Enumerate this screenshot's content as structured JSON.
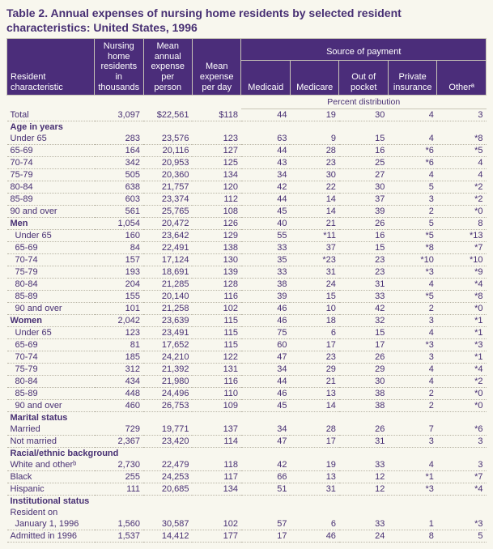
{
  "title": "Table 2. Annual expenses of nursing home residents by selected resident characteristics: United States, 1996",
  "header": {
    "resident_char": "Resident\ncharacteristic",
    "col1": "Nursing home residents in thousands",
    "col2": "Mean annual expense per person",
    "col3": "Mean expense per day",
    "source_group": "Source of payment",
    "sub": [
      "Medicaid",
      "Medicare",
      "Out of pocket",
      "Private insurance",
      "Otherª"
    ],
    "percent_dist": "Percent distribution"
  },
  "rows": [
    {
      "t": "data",
      "cls": "dot",
      "label": "Total",
      "ind": 0,
      "v": [
        "3,097",
        "$22,561",
        "$118",
        "44",
        "19",
        "30",
        "4",
        "3"
      ]
    },
    {
      "t": "section",
      "label": "Age in years"
    },
    {
      "t": "data",
      "cls": "dot",
      "label": "Under 65",
      "ind": 0,
      "v": [
        "283",
        "23,576",
        "123",
        "63",
        "9",
        "15",
        "4",
        "*8"
      ]
    },
    {
      "t": "data",
      "cls": "dot",
      "label": "65-69",
      "ind": 0,
      "v": [
        "164",
        "20,116",
        "127",
        "44",
        "28",
        "16",
        "*6",
        "*5"
      ]
    },
    {
      "t": "data",
      "cls": "dot",
      "label": "70-74",
      "ind": 0,
      "v": [
        "342",
        "20,953",
        "125",
        "43",
        "23",
        "25",
        "*6",
        "4"
      ]
    },
    {
      "t": "data",
      "cls": "dot",
      "label": "75-79",
      "ind": 0,
      "v": [
        "505",
        "20,360",
        "134",
        "34",
        "30",
        "27",
        "4",
        "4"
      ]
    },
    {
      "t": "data",
      "cls": "dot",
      "label": "80-84",
      "ind": 0,
      "v": [
        "638",
        "21,757",
        "120",
        "42",
        "22",
        "30",
        "5",
        "*2"
      ]
    },
    {
      "t": "data",
      "cls": "dot",
      "label": "85-89",
      "ind": 0,
      "v": [
        "603",
        "23,374",
        "112",
        "44",
        "14",
        "37",
        "3",
        "*2"
      ]
    },
    {
      "t": "data",
      "cls": "dot",
      "label": "90 and over",
      "ind": 0,
      "v": [
        "561",
        "25,765",
        "108",
        "45",
        "14",
        "39",
        "2",
        "*0"
      ]
    },
    {
      "t": "data",
      "cls": "dot",
      "label": "Men",
      "ind": 0,
      "bold": true,
      "v": [
        "1,054",
        "20,472",
        "126",
        "40",
        "21",
        "26",
        "5",
        "8"
      ]
    },
    {
      "t": "data",
      "cls": "dot",
      "label": "Under 65",
      "ind": 1,
      "v": [
        "160",
        "23,642",
        "129",
        "55",
        "*11",
        "16",
        "*5",
        "*13"
      ]
    },
    {
      "t": "data",
      "cls": "dot",
      "label": "65-69",
      "ind": 1,
      "v": [
        "84",
        "22,491",
        "138",
        "33",
        "37",
        "15",
        "*8",
        "*7"
      ]
    },
    {
      "t": "data",
      "cls": "dot",
      "label": "70-74",
      "ind": 1,
      "v": [
        "157",
        "17,124",
        "130",
        "35",
        "*23",
        "23",
        "*10",
        "*10"
      ]
    },
    {
      "t": "data",
      "cls": "dot",
      "label": "75-79",
      "ind": 1,
      "v": [
        "193",
        "18,691",
        "139",
        "33",
        "31",
        "23",
        "*3",
        "*9"
      ]
    },
    {
      "t": "data",
      "cls": "dot",
      "label": "80-84",
      "ind": 1,
      "v": [
        "204",
        "21,285",
        "128",
        "38",
        "24",
        "31",
        "4",
        "*4"
      ]
    },
    {
      "t": "data",
      "cls": "dot",
      "label": "85-89",
      "ind": 1,
      "v": [
        "155",
        "20,140",
        "116",
        "39",
        "15",
        "33",
        "*5",
        "*8"
      ]
    },
    {
      "t": "data",
      "cls": "dot",
      "label": "90 and over",
      "ind": 1,
      "v": [
        "101",
        "21,258",
        "102",
        "46",
        "10",
        "42",
        "2",
        "*0"
      ]
    },
    {
      "t": "data",
      "cls": "dot",
      "label": "Women",
      "ind": 0,
      "bold": true,
      "v": [
        "2,042",
        "23,639",
        "115",
        "46",
        "18",
        "32",
        "3",
        "*1"
      ]
    },
    {
      "t": "data",
      "cls": "dot",
      "label": "Under 65",
      "ind": 1,
      "v": [
        "123",
        "23,491",
        "115",
        "75",
        "6",
        "15",
        "4",
        "*1"
      ]
    },
    {
      "t": "data",
      "cls": "dot",
      "label": "65-69",
      "ind": 1,
      "v": [
        "81",
        "17,652",
        "115",
        "60",
        "17",
        "17",
        "*3",
        "*3"
      ]
    },
    {
      "t": "data",
      "cls": "dot",
      "label": "70-74",
      "ind": 1,
      "v": [
        "185",
        "24,210",
        "122",
        "47",
        "23",
        "26",
        "3",
        "*1"
      ]
    },
    {
      "t": "data",
      "cls": "dot",
      "label": "75-79",
      "ind": 1,
      "v": [
        "312",
        "21,392",
        "131",
        "34",
        "29",
        "29",
        "4",
        "*4"
      ]
    },
    {
      "t": "data",
      "cls": "dot",
      "label": "80-84",
      "ind": 1,
      "v": [
        "434",
        "21,980",
        "116",
        "44",
        "21",
        "30",
        "4",
        "*2"
      ]
    },
    {
      "t": "data",
      "cls": "dot",
      "label": "85-89",
      "ind": 1,
      "v": [
        "448",
        "24,496",
        "110",
        "46",
        "13",
        "38",
        "2",
        "*0"
      ]
    },
    {
      "t": "data",
      "cls": "dot",
      "label": "90 and over",
      "ind": 1,
      "v": [
        "460",
        "26,753",
        "109",
        "45",
        "14",
        "38",
        "2",
        "*0"
      ]
    },
    {
      "t": "section",
      "label": "Marital status"
    },
    {
      "t": "data",
      "cls": "dot",
      "label": "Married",
      "ind": 0,
      "v": [
        "729",
        "19,771",
        "137",
        "34",
        "28",
        "26",
        "7",
        "*6"
      ]
    },
    {
      "t": "data",
      "cls": "dot",
      "label": "Not married",
      "ind": 0,
      "v": [
        "2,367",
        "23,420",
        "114",
        "47",
        "17",
        "31",
        "3",
        "3"
      ]
    },
    {
      "t": "section",
      "label": "Racial/ethnic background"
    },
    {
      "t": "data",
      "cls": "dot",
      "label": "White and otherᵇ",
      "ind": 0,
      "v": [
        "2,730",
        "22,479",
        "118",
        "42",
        "19",
        "33",
        "4",
        "3"
      ]
    },
    {
      "t": "data",
      "cls": "dot",
      "label": "Black",
      "ind": 0,
      "v": [
        "255",
        "24,253",
        "117",
        "66",
        "13",
        "12",
        "*1",
        "*7"
      ]
    },
    {
      "t": "data",
      "cls": "dot",
      "label": "Hispanic",
      "ind": 0,
      "v": [
        "111",
        "20,685",
        "134",
        "51",
        "31",
        "12",
        "*3",
        "*4"
      ]
    },
    {
      "t": "section",
      "label": "Institutional status"
    },
    {
      "t": "plain",
      "label": "Resident on",
      "ind": 0
    },
    {
      "t": "data",
      "cls": "dot",
      "label": "January 1, 1996",
      "ind": 1,
      "v": [
        "1,560",
        "30,587",
        "102",
        "57",
        "6",
        "33",
        "1",
        "*3"
      ]
    },
    {
      "t": "data",
      "cls": "dot",
      "label": "Admitted in 1996",
      "ind": 0,
      "v": [
        "1,537",
        "14,412",
        "177",
        "17",
        "46",
        "24",
        "8",
        "5"
      ]
    }
  ],
  "style": {
    "bg": "#f8f7ee",
    "text": "#472f73",
    "header_bg": "#4b2d7a"
  }
}
